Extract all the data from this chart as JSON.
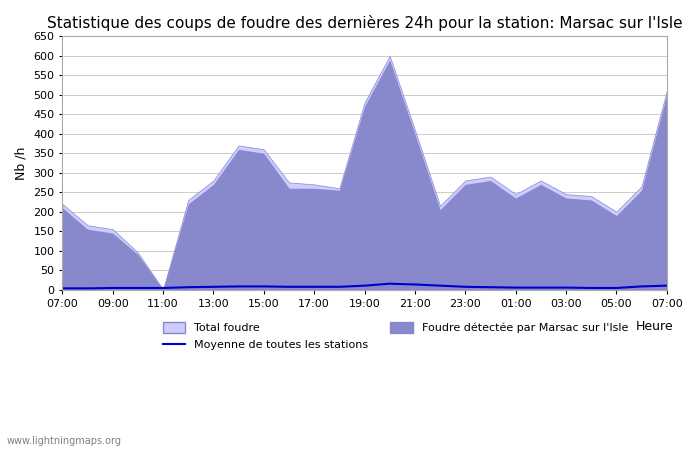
{
  "title": "Statistique des coups de foudre des dernières 24h pour la station: Marsac sur l'Isle",
  "xlabel": "Heure",
  "ylabel": "Nb /h",
  "ylim": [
    0,
    650
  ],
  "yticks": [
    0,
    50,
    100,
    150,
    200,
    250,
    300,
    350,
    400,
    450,
    500,
    550,
    600,
    650
  ],
  "xtick_labels": [
    "07:00",
    "09:00",
    "11:00",
    "13:00",
    "15:00",
    "17:00",
    "19:00",
    "21:00",
    "23:00",
    "01:00",
    "03:00",
    "05:00",
    "07:00"
  ],
  "watermark": "www.lightningmaps.org",
  "fill_color_light": "#ccccff",
  "fill_color_dark": "#8888dd",
  "line_color": "#0000cc",
  "background_color": "#ffffff",
  "grid_color": "#cccccc",
  "title_fontsize": 11,
  "legend_items": [
    "Total foudre",
    "Moyenne de toutes les stations",
    "Foudre détectée par Marsac sur l'Isle"
  ],
  "total_foudre_color": "#ccccff",
  "total_foudre_edge": "#8888cc",
  "foudre_detectee_color": "#8888cc",
  "moyenne_color": "#0000cc",
  "x_hours": [
    7,
    8,
    9,
    10,
    11,
    12,
    13,
    14,
    15,
    16,
    17,
    18,
    19,
    20,
    21,
    22,
    23,
    24,
    25,
    26,
    27,
    28,
    29,
    30,
    31
  ],
  "total_foudre_values": [
    220,
    165,
    155,
    95,
    0,
    230,
    280,
    370,
    360,
    275,
    270,
    260,
    480,
    600,
    410,
    215,
    280,
    290,
    245,
    280,
    245,
    240,
    200,
    265,
    510
  ],
  "foudre_detectee_values": [
    210,
    155,
    145,
    90,
    0,
    220,
    270,
    360,
    350,
    260,
    260,
    255,
    470,
    590,
    400,
    205,
    270,
    280,
    235,
    270,
    235,
    230,
    190,
    255,
    500
  ],
  "moyenne_values": [
    3,
    3,
    4,
    4,
    4,
    6,
    7,
    8,
    8,
    7,
    7,
    7,
    10,
    15,
    13,
    10,
    7,
    6,
    5,
    5,
    5,
    4,
    4,
    8,
    10
  ]
}
